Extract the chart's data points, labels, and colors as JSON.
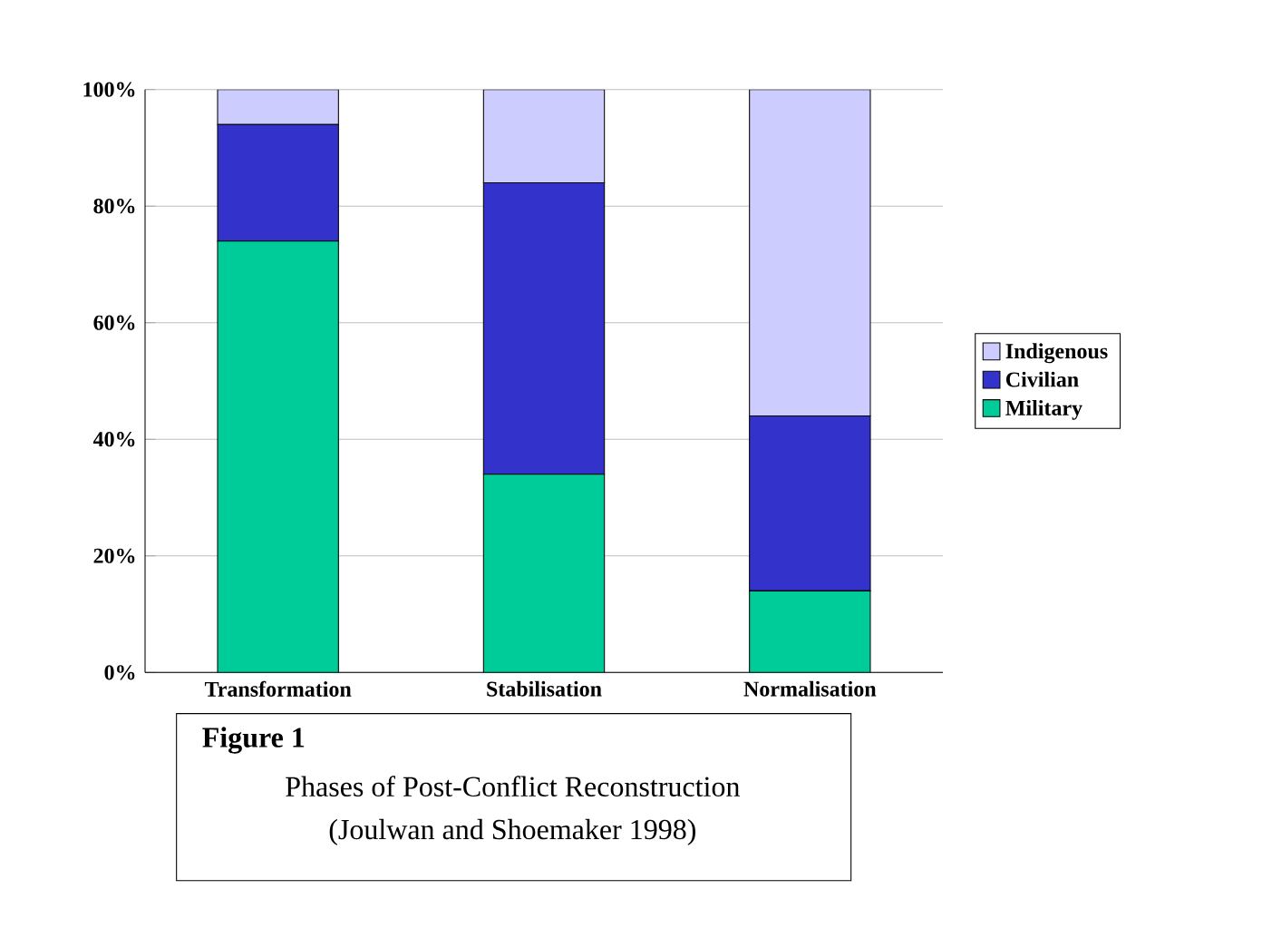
{
  "chart_data": {
    "type": "bar",
    "stacked": true,
    "title": "Figure 1",
    "subtitle": "Phases of Post-Conflict Reconstruction",
    "annotations": [
      "(Joulwan and Shoemaker 1998)"
    ],
    "categories": [
      "Transformation",
      "Stabilisation",
      "Normalisation"
    ],
    "series": [
      {
        "name": "Military",
        "color": "#00cc99",
        "values": [
          74,
          34,
          14
        ]
      },
      {
        "name": "Civilian",
        "color": "#3333cc",
        "values": [
          20,
          50,
          30
        ]
      },
      {
        "name": "Indigenous",
        "color": "#ccccff",
        "values": [
          6,
          16,
          56
        ]
      }
    ],
    "ylim": [
      0,
      100
    ],
    "yticks": [
      {
        "value": 0,
        "label": "0%"
      },
      {
        "value": 20,
        "label": "20%"
      },
      {
        "value": 40,
        "label": "40%"
      },
      {
        "value": 60,
        "label": "60%"
      },
      {
        "value": 80,
        "label": "80%"
      },
      {
        "value": 100,
        "label": "100%"
      }
    ],
    "grid": "y",
    "legend": "right"
  }
}
